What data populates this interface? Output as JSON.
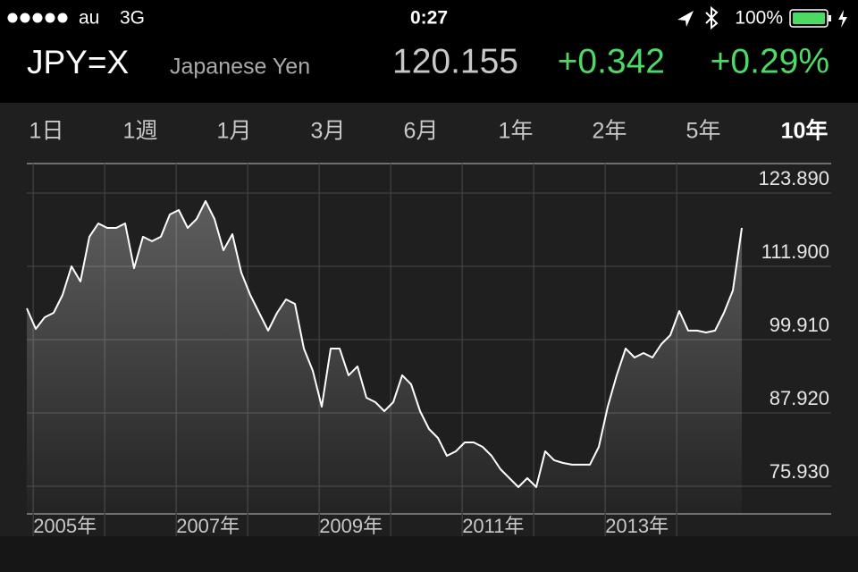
{
  "status_bar": {
    "carrier": "au",
    "network": "3G",
    "time": "0:27",
    "battery": "100%"
  },
  "header": {
    "symbol": "JPY=X",
    "name": "Japanese Yen",
    "price": "120.155",
    "change": "+0.342",
    "change_percent": "+0.29%"
  },
  "tabs": [
    "1日",
    "1週",
    "1月",
    "3月",
    "6月",
    "1年",
    "2年",
    "5年",
    "10年"
  ],
  "selected_tab": 8,
  "chart_data": {
    "type": "line",
    "color": "#ffffff",
    "x": [
      2004.91,
      2005.035,
      2005.16,
      2005.285,
      2005.41,
      2005.535,
      2005.66,
      2005.785,
      2005.91,
      2006.035,
      2006.16,
      2006.285,
      2006.41,
      2006.535,
      2006.66,
      2006.785,
      2006.91,
      2007.035,
      2007.16,
      2007.285,
      2007.41,
      2007.535,
      2007.66,
      2007.785,
      2007.91,
      2008.035,
      2008.16,
      2008.285,
      2008.41,
      2008.535,
      2008.66,
      2008.785,
      2008.91,
      2009.035,
      2009.16,
      2009.285,
      2009.41,
      2009.535,
      2009.66,
      2009.785,
      2009.91,
      2010.035,
      2010.16,
      2010.285,
      2010.41,
      2010.535,
      2010.66,
      2010.785,
      2010.91,
      2011.035,
      2011.16,
      2011.285,
      2011.41,
      2011.535,
      2011.66,
      2011.785,
      2011.91,
      2012.035,
      2012.16,
      2012.285,
      2012.41,
      2012.535,
      2012.66,
      2012.785,
      2012.91,
      2013.035,
      2013.16,
      2013.285,
      2013.41,
      2013.535,
      2013.66,
      2013.785,
      2013.91,
      2014.035,
      2014.16,
      2014.285,
      2014.41,
      2014.535,
      2014.66,
      2014.785,
      2014.91
    ],
    "values": [
      105.03,
      101.67,
      103.57,
      104.3,
      107.22,
      111.9,
      109.42,
      116.73,
      118.92,
      118.19,
      118.19,
      118.92,
      111.61,
      116.73,
      116.0,
      116.73,
      120.38,
      121.11,
      118.19,
      119.65,
      122.57,
      119.65,
      114.53,
      117.16,
      110.88,
      107.22,
      104.3,
      101.38,
      104.3,
      106.49,
      105.76,
      98.45,
      94.8,
      88.95,
      98.45,
      98.45,
      94.07,
      95.53,
      90.41,
      89.68,
      88.22,
      89.68,
      94.07,
      92.6,
      88.22,
      85.29,
      83.83,
      80.91,
      81.64,
      83.1,
      83.1,
      82.37,
      80.91,
      78.71,
      77.25,
      75.79,
      77.25,
      75.79,
      81.64,
      80.18,
      79.74,
      79.45,
      79.45,
      79.45,
      82.37,
      88.95,
      94.07,
      98.45,
      96.99,
      97.72,
      96.99,
      99.18,
      100.64,
      104.59,
      101.38,
      101.38,
      101.08,
      101.38,
      104.3,
      107.95,
      118.19
    ],
    "xlim": [
      2004.91,
      2016.16
    ],
    "ylim": [
      71.4,
      128.71
    ],
    "xticks": [
      {
        "value": 2005,
        "label": "2005年"
      },
      {
        "value": 2006,
        "label": null
      },
      {
        "value": 2007,
        "label": "2007年"
      },
      {
        "value": 2008,
        "label": null
      },
      {
        "value": 2009,
        "label": "2009年"
      },
      {
        "value": 2010,
        "label": null
      },
      {
        "value": 2011,
        "label": "2011年"
      },
      {
        "value": 2012,
        "label": null
      },
      {
        "value": 2013,
        "label": "2013年"
      },
      {
        "value": 2014,
        "label": null
      }
    ],
    "yticks": [
      {
        "value": 75.93,
        "label": "75.930"
      },
      {
        "value": 87.92,
        "label": "87.920"
      },
      {
        "value": 99.91,
        "label": "99.910"
      },
      {
        "value": 111.9,
        "label": "111.900"
      },
      {
        "value": 123.89,
        "label": "123.890"
      }
    ],
    "grid": true
  }
}
